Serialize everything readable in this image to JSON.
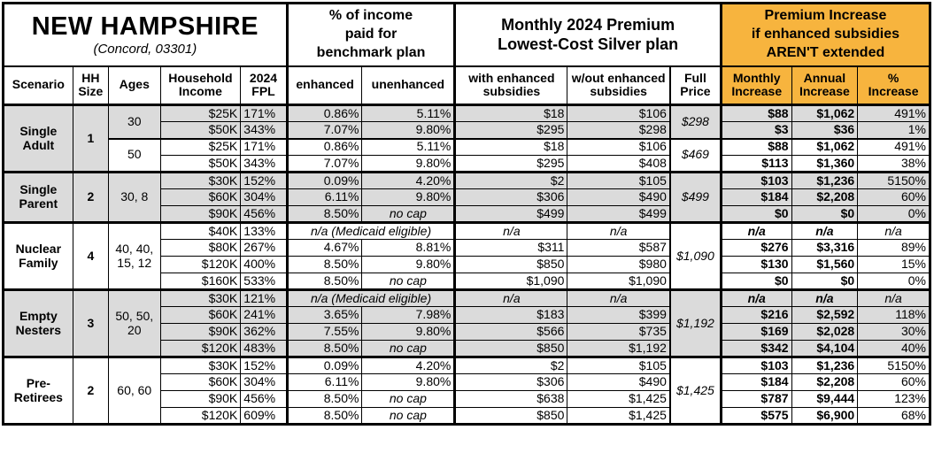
{
  "title": {
    "state": "NEW HAMPSHIRE",
    "location": "(Concord, 03301)"
  },
  "header_groups": {
    "income_pct": "% of income\npaid for\nbenchmark plan",
    "premium": "Monthly 2024 Premium\nLowest-Cost Silver plan",
    "increase": "Premium Increase\nif enhanced subsidies\nAREN'T extended"
  },
  "columns": {
    "scenario": "Scenario",
    "hh_size": "HH\nSize",
    "ages": "Ages",
    "income": "Household\nIncome",
    "fpl": "2024\nFPL",
    "enhanced": "enhanced",
    "unenhanced": "unenhanced",
    "with_sub": "with enhanced\nsubsidies",
    "wout_sub": "w/out enhanced\nsubsidies",
    "full_price": "Full\nPrice",
    "monthly": "Monthly\nIncrease",
    "annual": "Annual\nIncrease",
    "pct": "%\nIncrease"
  },
  "colors": {
    "accent_orange": "#F7B43E",
    "band_gray": "#DBDBDB"
  },
  "groups": [
    {
      "scenario": "Single Adult",
      "hh_size": "1",
      "blocks": [
        {
          "ages": "30",
          "full_price": "$298",
          "shaded": true,
          "rows": [
            {
              "income": "$25K",
              "fpl": "171%",
              "enh": "0.86%",
              "unenh": "5.11%",
              "with_sub": "$18",
              "wout_sub": "$106",
              "mo": "$88",
              "yr": "$1,062",
              "pct": "491%"
            },
            {
              "income": "$50K",
              "fpl": "343%",
              "enh": "7.07%",
              "unenh": "9.80%",
              "with_sub": "$295",
              "wout_sub": "$298",
              "mo": "$3",
              "yr": "$36",
              "pct": "1%"
            }
          ]
        },
        {
          "ages": "50",
          "full_price": "$469",
          "shaded": false,
          "rows": [
            {
              "income": "$25K",
              "fpl": "171%",
              "enh": "0.86%",
              "unenh": "5.11%",
              "with_sub": "$18",
              "wout_sub": "$106",
              "mo": "$88",
              "yr": "$1,062",
              "pct": "491%"
            },
            {
              "income": "$50K",
              "fpl": "343%",
              "enh": "7.07%",
              "unenh": "9.80%",
              "with_sub": "$295",
              "wout_sub": "$408",
              "mo": "$113",
              "yr": "$1,360",
              "pct": "38%"
            }
          ]
        }
      ]
    },
    {
      "scenario": "Single Parent",
      "hh_size": "2",
      "blocks": [
        {
          "ages": "30, 8",
          "full_price": "$499",
          "shaded": true,
          "rows": [
            {
              "income": "$30K",
              "fpl": "152%",
              "enh": "0.09%",
              "unenh": "4.20%",
              "with_sub": "$2",
              "wout_sub": "$105",
              "mo": "$103",
              "yr": "$1,236",
              "pct": "5150%"
            },
            {
              "income": "$60K",
              "fpl": "304%",
              "enh": "6.11%",
              "unenh": "9.80%",
              "with_sub": "$306",
              "wout_sub": "$490",
              "mo": "$184",
              "yr": "$2,208",
              "pct": "60%"
            },
            {
              "income": "$90K",
              "fpl": "456%",
              "enh": "8.50%",
              "unenh": "no cap",
              "with_sub": "$499",
              "wout_sub": "$499",
              "mo": "$0",
              "yr": "$0",
              "pct": "0%"
            }
          ]
        }
      ]
    },
    {
      "scenario": "Nuclear Family",
      "hh_size": "4",
      "blocks": [
        {
          "ages": "40, 40, 15, 12",
          "full_price": "$1,090",
          "shaded": false,
          "rows": [
            {
              "income": "$40K",
              "fpl": "133%",
              "medicaid": "n/a (Medicaid eligible)",
              "with_sub": "n/a",
              "wout_sub": "n/a",
              "mo": "n/a",
              "yr": "n/a",
              "pct": "n/a"
            },
            {
              "income": "$80K",
              "fpl": "267%",
              "enh": "4.67%",
              "unenh": "8.81%",
              "with_sub": "$311",
              "wout_sub": "$587",
              "mo": "$276",
              "yr": "$3,316",
              "pct": "89%"
            },
            {
              "income": "$120K",
              "fpl": "400%",
              "enh": "8.50%",
              "unenh": "9.80%",
              "with_sub": "$850",
              "wout_sub": "$980",
              "mo": "$130",
              "yr": "$1,560",
              "pct": "15%"
            },
            {
              "income": "$160K",
              "fpl": "533%",
              "enh": "8.50%",
              "unenh": "no cap",
              "with_sub": "$1,090",
              "wout_sub": "$1,090",
              "mo": "$0",
              "yr": "$0",
              "pct": "0%"
            }
          ]
        }
      ]
    },
    {
      "scenario": "Empty Nesters",
      "hh_size": "3",
      "blocks": [
        {
          "ages": "50, 50, 20",
          "full_price": "$1,192",
          "shaded": true,
          "rows": [
            {
              "income": "$30K",
              "fpl": "121%",
              "medicaid": "n/a (Medicaid eligible)",
              "with_sub": "n/a",
              "wout_sub": "n/a",
              "mo": "n/a",
              "yr": "n/a",
              "pct": "n/a"
            },
            {
              "income": "$60K",
              "fpl": "241%",
              "enh": "3.65%",
              "unenh": "7.98%",
              "with_sub": "$183",
              "wout_sub": "$399",
              "mo": "$216",
              "yr": "$2,592",
              "pct": "118%"
            },
            {
              "income": "$90K",
              "fpl": "362%",
              "enh": "7.55%",
              "unenh": "9.80%",
              "with_sub": "$566",
              "wout_sub": "$735",
              "mo": "$169",
              "yr": "$2,028",
              "pct": "30%"
            },
            {
              "income": "$120K",
              "fpl": "483%",
              "enh": "8.50%",
              "unenh": "no cap",
              "with_sub": "$850",
              "wout_sub": "$1,192",
              "mo": "$342",
              "yr": "$4,104",
              "pct": "40%"
            }
          ]
        }
      ]
    },
    {
      "scenario": "Pre-Retirees",
      "hh_size": "2",
      "blocks": [
        {
          "ages": "60, 60",
          "full_price": "$1,425",
          "shaded": false,
          "rows": [
            {
              "income": "$30K",
              "fpl": "152%",
              "enh": "0.09%",
              "unenh": "4.20%",
              "with_sub": "$2",
              "wout_sub": "$105",
              "mo": "$103",
              "yr": "$1,236",
              "pct": "5150%"
            },
            {
              "income": "$60K",
              "fpl": "304%",
              "enh": "6.11%",
              "unenh": "9.80%",
              "with_sub": "$306",
              "wout_sub": "$490",
              "mo": "$184",
              "yr": "$2,208",
              "pct": "60%"
            },
            {
              "income": "$90K",
              "fpl": "456%",
              "enh": "8.50%",
              "unenh": "no cap",
              "with_sub": "$638",
              "wout_sub": "$1,425",
              "mo": "$787",
              "yr": "$9,444",
              "pct": "123%"
            },
            {
              "income": "$120K",
              "fpl": "609%",
              "enh": "8.50%",
              "unenh": "no cap",
              "with_sub": "$850",
              "wout_sub": "$1,425",
              "mo": "$575",
              "yr": "$6,900",
              "pct": "68%"
            }
          ]
        }
      ]
    }
  ]
}
